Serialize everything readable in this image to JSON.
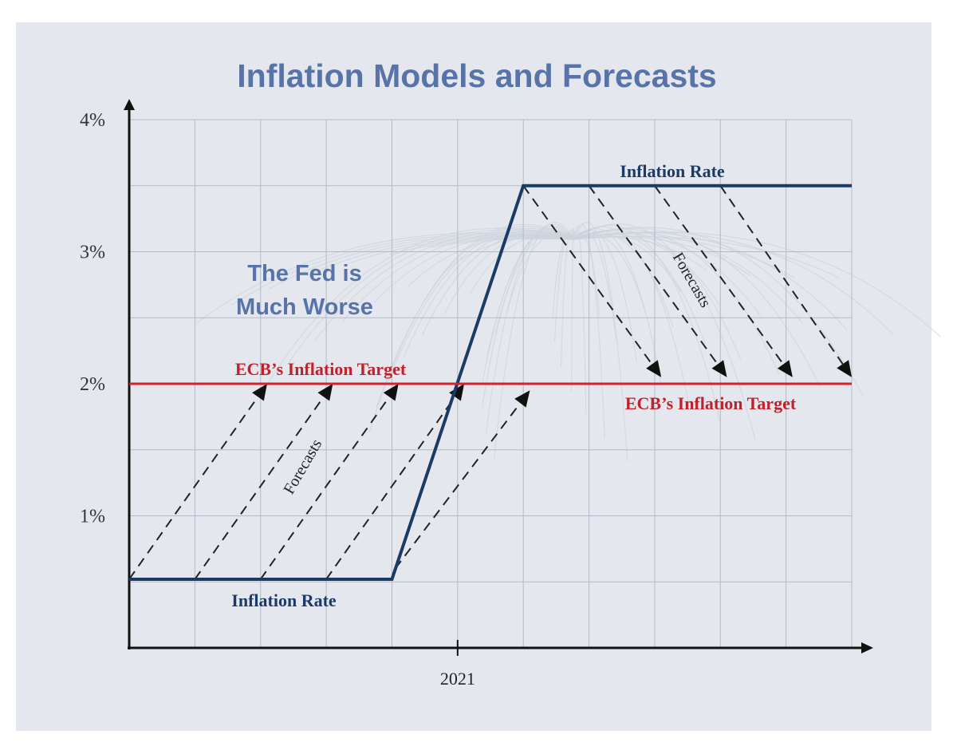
{
  "chart_data": {
    "type": "line",
    "title": "Inflation Models and Forecasts",
    "y_ticks": [
      "1%",
      "2%",
      "3%",
      "4%"
    ],
    "y_tick_values": [
      1,
      2,
      3,
      4
    ],
    "ylim": [
      0,
      4
    ],
    "xlim": [
      0,
      11
    ],
    "x_ticks": [
      {
        "x": 5,
        "label": "2021"
      }
    ],
    "grid": true,
    "series": [
      {
        "name": "Inflation Rate",
        "color": "#1b3a66",
        "x": [
          0,
          4,
          6,
          11
        ],
        "y": [
          0.52,
          0.52,
          3.5,
          3.5
        ]
      },
      {
        "name": "ECB's Inflation Target",
        "color": "#d0232f",
        "x": [
          0,
          11
        ],
        "y": [
          2.0,
          2.0
        ]
      }
    ],
    "forecast_arrows": [
      {
        "from": [
          0,
          0.52
        ],
        "to": [
          2.1,
          2.0
        ]
      },
      {
        "from": [
          1,
          0.52
        ],
        "to": [
          3.1,
          2.0
        ]
      },
      {
        "from": [
          2,
          0.52
        ],
        "to": [
          4.1,
          2.0
        ]
      },
      {
        "from": [
          3,
          0.52
        ],
        "to": [
          5.1,
          2.0
        ]
      },
      {
        "from": [
          4.05,
          0.6
        ],
        "to": [
          6.1,
          1.95
        ]
      },
      {
        "from": [
          6,
          3.5
        ],
        "to": [
          8.1,
          2.05
        ]
      },
      {
        "from": [
          7,
          3.5
        ],
        "to": [
          9.1,
          2.05
        ]
      },
      {
        "from": [
          8,
          3.5
        ],
        "to": [
          10.1,
          2.05
        ]
      },
      {
        "from": [
          9,
          3.5
        ],
        "to": [
          11.0,
          2.05
        ]
      }
    ],
    "annotations": {
      "inflation_top": "Inflation Rate",
      "inflation_bottom": "Inflation Rate",
      "target_upper": "ECB’s Inflation Target",
      "target_lower": "ECB’s Inflation Target",
      "forecasts_left": "Forecasts",
      "forecasts_right": "Forecasts",
      "callout": [
        "The Fed is",
        "Much Worse"
      ]
    }
  }
}
